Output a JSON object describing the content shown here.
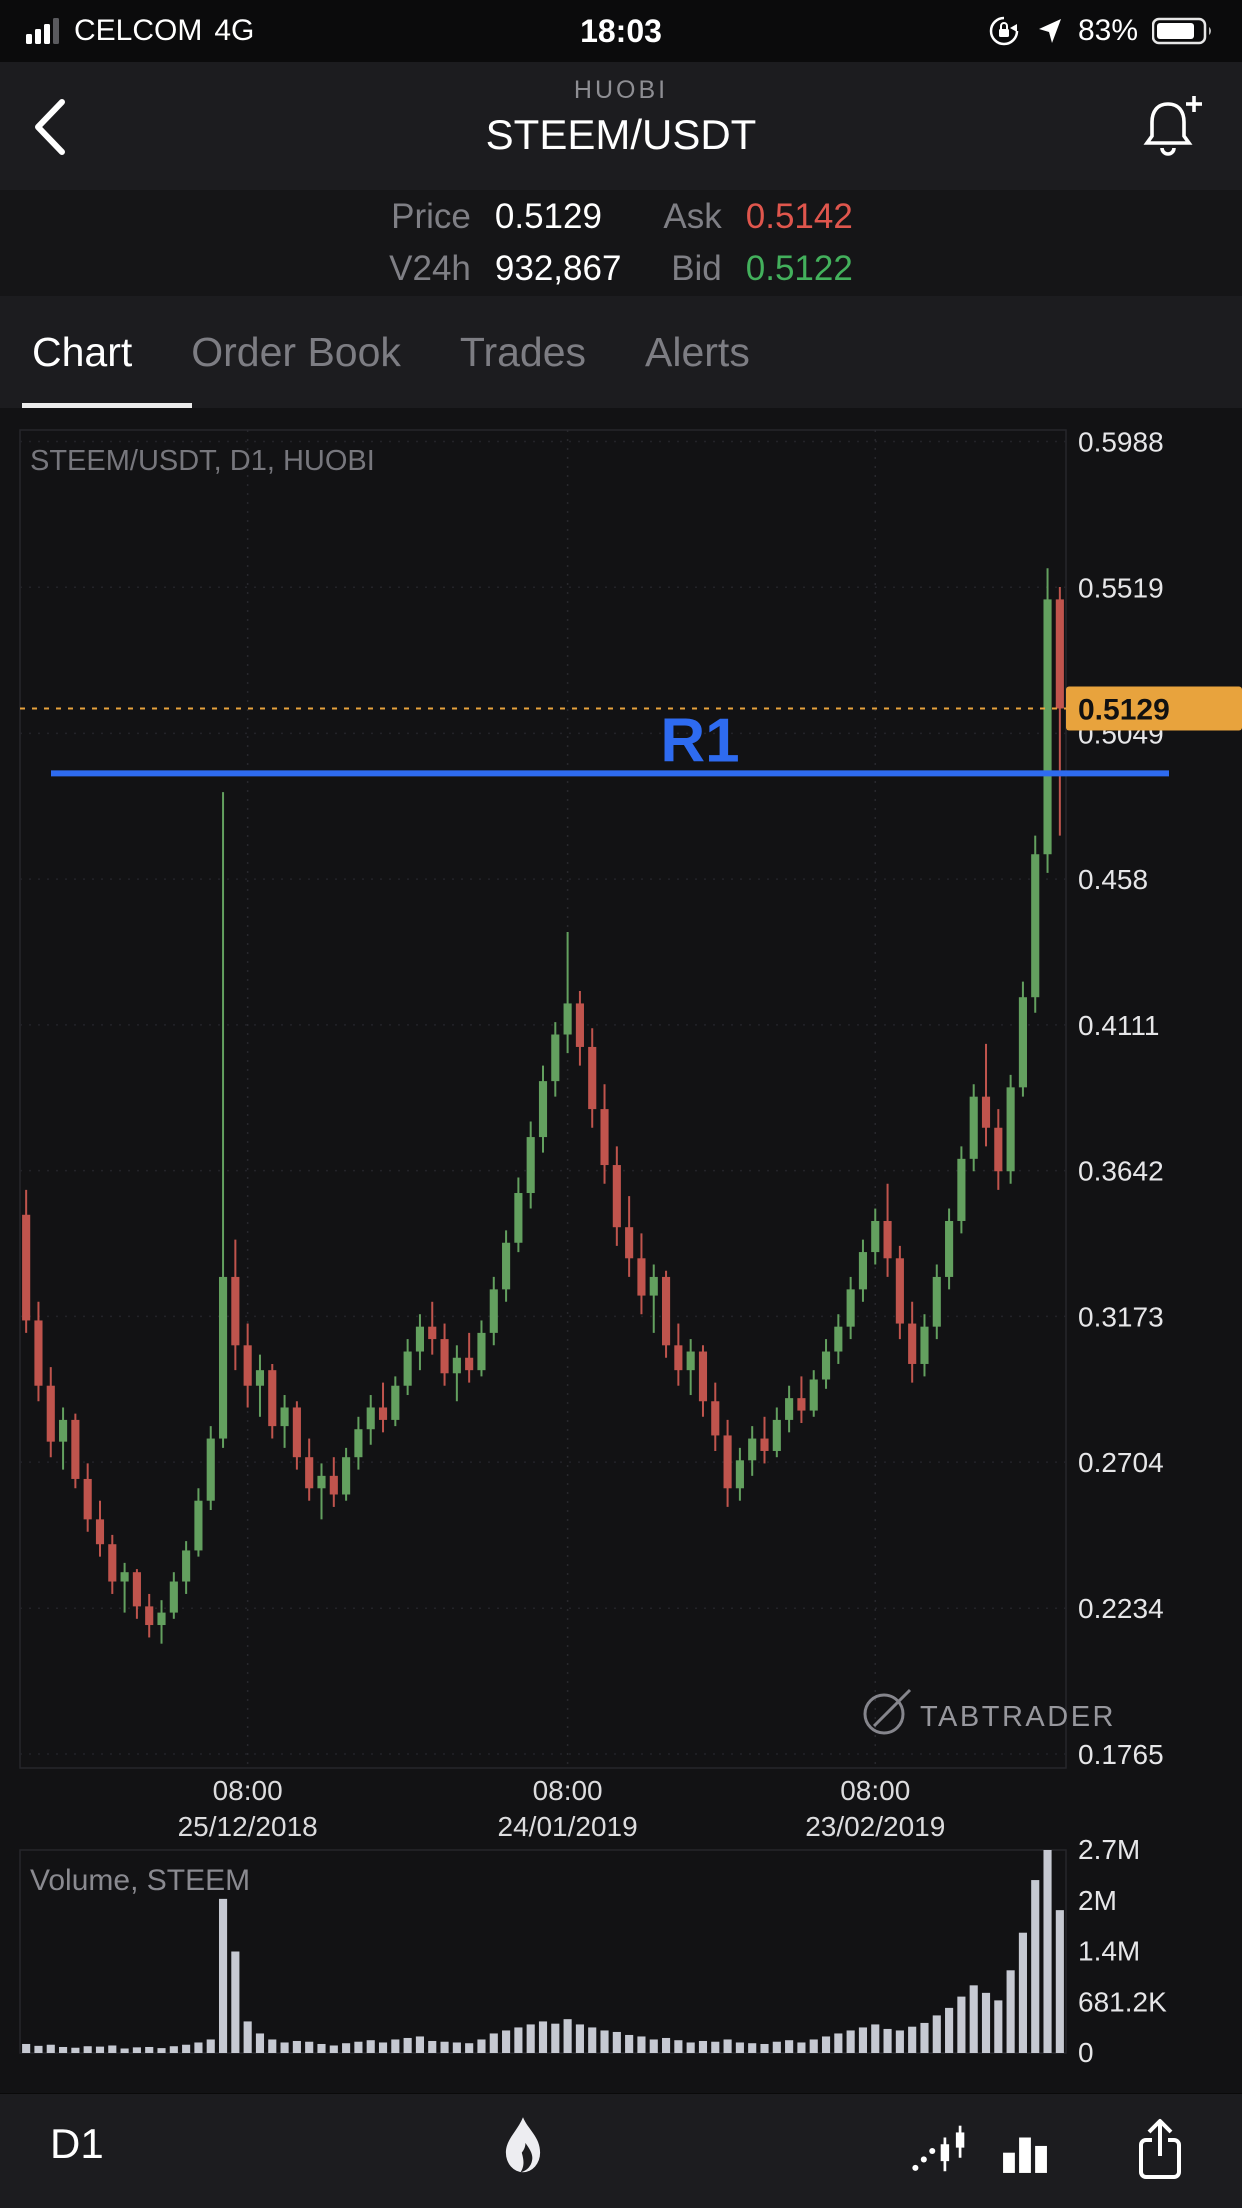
{
  "status_bar": {
    "carrier": "CELCOM",
    "network": "4G",
    "time": "18:03",
    "battery_pct": "83%"
  },
  "header": {
    "exchange": "HUOBI",
    "pair": "STEEM/USDT"
  },
  "ticker": {
    "price_label": "Price",
    "price": "0.5129",
    "ask_label": "Ask",
    "ask": "0.5142",
    "v24h_label": "V24h",
    "v24h": "932,867",
    "bid_label": "Bid",
    "bid": "0.5122"
  },
  "tabs": [
    {
      "label": "Chart",
      "active": true
    },
    {
      "label": "Order Book",
      "active": false
    },
    {
      "label": "Trades",
      "active": false
    },
    {
      "label": "Alerts",
      "active": false
    }
  ],
  "toolbar": {
    "timeframe": "D1"
  },
  "chart_data": {
    "type": "candlestick+volume",
    "watermark": "STEEM/USDT, D1, HUOBI",
    "volume_label": "Volume, STEEM",
    "brand_watermark": "TABTRADER",
    "price_axis": {
      "min": 0.172,
      "max": 0.6025,
      "ticks": [
        "0.5988",
        "0.5519",
        "0.5049",
        "0.458",
        "0.4111",
        "0.3642",
        "0.3173",
        "0.2704",
        "0.2234",
        "0.1765"
      ]
    },
    "last_price": {
      "label": "0.5129",
      "price": 0.5129,
      "color": "#e8a33d"
    },
    "r1_line": {
      "label": "R1",
      "price": 0.492,
      "color": "#2e6bf0"
    },
    "time_axis": [
      {
        "index": 18,
        "time": "08:00",
        "date": "25/12/2018"
      },
      {
        "index": 44,
        "time": "08:00",
        "date": "24/01/2019"
      },
      {
        "index": 69,
        "time": "08:00",
        "date": "23/02/2019"
      }
    ],
    "volume_axis": {
      "max": 2700000,
      "ticks": [
        "2.7M",
        "2M",
        "1.4M",
        "681.2K",
        "0"
      ]
    },
    "colors": {
      "up": "#63a05f",
      "down": "#c0544d",
      "volume": "#c6c9d2"
    },
    "candles": [
      [
        0.35,
        0.358,
        0.312,
        0.316
      ],
      [
        0.316,
        0.322,
        0.29,
        0.295
      ],
      [
        0.295,
        0.301,
        0.272,
        0.277
      ],
      [
        0.277,
        0.288,
        0.268,
        0.284
      ],
      [
        0.284,
        0.286,
        0.262,
        0.265
      ],
      [
        0.265,
        0.27,
        0.248,
        0.252
      ],
      [
        0.252,
        0.258,
        0.24,
        0.244
      ],
      [
        0.244,
        0.247,
        0.228,
        0.232
      ],
      [
        0.232,
        0.238,
        0.222,
        0.235
      ],
      [
        0.235,
        0.236,
        0.22,
        0.224
      ],
      [
        0.224,
        0.228,
        0.214,
        0.218
      ],
      [
        0.218,
        0.226,
        0.212,
        0.222
      ],
      [
        0.222,
        0.235,
        0.22,
        0.232
      ],
      [
        0.232,
        0.245,
        0.228,
        0.242
      ],
      [
        0.242,
        0.262,
        0.24,
        0.258
      ],
      [
        0.258,
        0.282,
        0.255,
        0.278
      ],
      [
        0.278,
        0.486,
        0.275,
        0.33
      ],
      [
        0.33,
        0.342,
        0.3,
        0.308
      ],
      [
        0.308,
        0.315,
        0.288,
        0.295
      ],
      [
        0.295,
        0.305,
        0.285,
        0.3
      ],
      [
        0.3,
        0.302,
        0.278,
        0.282
      ],
      [
        0.282,
        0.292,
        0.275,
        0.288
      ],
      [
        0.288,
        0.29,
        0.268,
        0.272
      ],
      [
        0.272,
        0.278,
        0.258,
        0.262
      ],
      [
        0.262,
        0.27,
        0.252,
        0.266
      ],
      [
        0.266,
        0.272,
        0.256,
        0.26
      ],
      [
        0.26,
        0.275,
        0.258,
        0.272
      ],
      [
        0.272,
        0.285,
        0.268,
        0.281
      ],
      [
        0.281,
        0.292,
        0.276,
        0.288
      ],
      [
        0.288,
        0.296,
        0.28,
        0.284
      ],
      [
        0.284,
        0.298,
        0.282,
        0.295
      ],
      [
        0.295,
        0.31,
        0.292,
        0.306
      ],
      [
        0.306,
        0.318,
        0.3,
        0.314
      ],
      [
        0.314,
        0.322,
        0.305,
        0.31
      ],
      [
        0.31,
        0.315,
        0.295,
        0.299
      ],
      [
        0.299,
        0.308,
        0.29,
        0.304
      ],
      [
        0.304,
        0.312,
        0.296,
        0.3
      ],
      [
        0.3,
        0.316,
        0.298,
        0.312
      ],
      [
        0.312,
        0.33,
        0.308,
        0.326
      ],
      [
        0.326,
        0.345,
        0.322,
        0.341
      ],
      [
        0.341,
        0.362,
        0.338,
        0.357
      ],
      [
        0.357,
        0.38,
        0.352,
        0.375
      ],
      [
        0.375,
        0.398,
        0.37,
        0.393
      ],
      [
        0.393,
        0.412,
        0.388,
        0.408
      ],
      [
        0.408,
        0.441,
        0.402,
        0.418
      ],
      [
        0.418,
        0.422,
        0.398,
        0.404
      ],
      [
        0.404,
        0.41,
        0.378,
        0.384
      ],
      [
        0.384,
        0.392,
        0.36,
        0.366
      ],
      [
        0.366,
        0.372,
        0.34,
        0.346
      ],
      [
        0.346,
        0.356,
        0.33,
        0.336
      ],
      [
        0.336,
        0.344,
        0.318,
        0.324
      ],
      [
        0.324,
        0.334,
        0.312,
        0.33
      ],
      [
        0.33,
        0.332,
        0.304,
        0.308
      ],
      [
        0.308,
        0.315,
        0.295,
        0.3
      ],
      [
        0.3,
        0.31,
        0.292,
        0.306
      ],
      [
        0.306,
        0.308,
        0.285,
        0.29
      ],
      [
        0.29,
        0.296,
        0.274,
        0.279
      ],
      [
        0.279,
        0.284,
        0.256,
        0.262
      ],
      [
        0.262,
        0.275,
        0.258,
        0.271
      ],
      [
        0.271,
        0.282,
        0.266,
        0.278
      ],
      [
        0.278,
        0.285,
        0.27,
        0.274
      ],
      [
        0.274,
        0.288,
        0.272,
        0.284
      ],
      [
        0.284,
        0.295,
        0.28,
        0.291
      ],
      [
        0.291,
        0.298,
        0.283,
        0.287
      ],
      [
        0.287,
        0.3,
        0.285,
        0.297
      ],
      [
        0.297,
        0.31,
        0.294,
        0.306
      ],
      [
        0.306,
        0.318,
        0.302,
        0.314
      ],
      [
        0.314,
        0.33,
        0.31,
        0.326
      ],
      [
        0.326,
        0.342,
        0.322,
        0.338
      ],
      [
        0.338,
        0.352,
        0.334,
        0.348
      ],
      [
        0.348,
        0.36,
        0.33,
        0.336
      ],
      [
        0.336,
        0.34,
        0.31,
        0.315
      ],
      [
        0.315,
        0.322,
        0.296,
        0.302
      ],
      [
        0.302,
        0.318,
        0.298,
        0.314
      ],
      [
        0.314,
        0.334,
        0.31,
        0.33
      ],
      [
        0.33,
        0.352,
        0.326,
        0.348
      ],
      [
        0.348,
        0.372,
        0.344,
        0.368
      ],
      [
        0.368,
        0.392,
        0.364,
        0.388
      ],
      [
        0.388,
        0.405,
        0.372,
        0.378
      ],
      [
        0.378,
        0.384,
        0.358,
        0.364
      ],
      [
        0.364,
        0.395,
        0.36,
        0.391
      ],
      [
        0.391,
        0.425,
        0.388,
        0.42
      ],
      [
        0.42,
        0.472,
        0.415,
        0.466
      ],
      [
        0.466,
        0.558,
        0.46,
        0.548
      ],
      [
        0.548,
        0.552,
        0.472,
        0.5129
      ]
    ],
    "volumes": [
      120000,
      95000,
      110000,
      80000,
      70000,
      90000,
      85000,
      100000,
      60000,
      75000,
      80000,
      65000,
      90000,
      110000,
      140000,
      180000,
      2050000,
      1350000,
      420000,
      260000,
      180000,
      140000,
      160000,
      150000,
      120000,
      100000,
      130000,
      150000,
      170000,
      140000,
      180000,
      200000,
      220000,
      160000,
      150000,
      140000,
      130000,
      180000,
      260000,
      300000,
      340000,
      380000,
      420000,
      390000,
      450000,
      380000,
      340000,
      300000,
      280000,
      240000,
      220000,
      180000,
      200000,
      170000,
      140000,
      160000,
      150000,
      180000,
      140000,
      130000,
      120000,
      150000,
      170000,
      140000,
      180000,
      220000,
      260000,
      300000,
      340000,
      380000,
      320000,
      300000,
      350000,
      400000,
      500000,
      600000,
      750000,
      900000,
      800000,
      700000,
      1100000,
      1600000,
      2300000,
      2700000,
      1900000
    ]
  }
}
